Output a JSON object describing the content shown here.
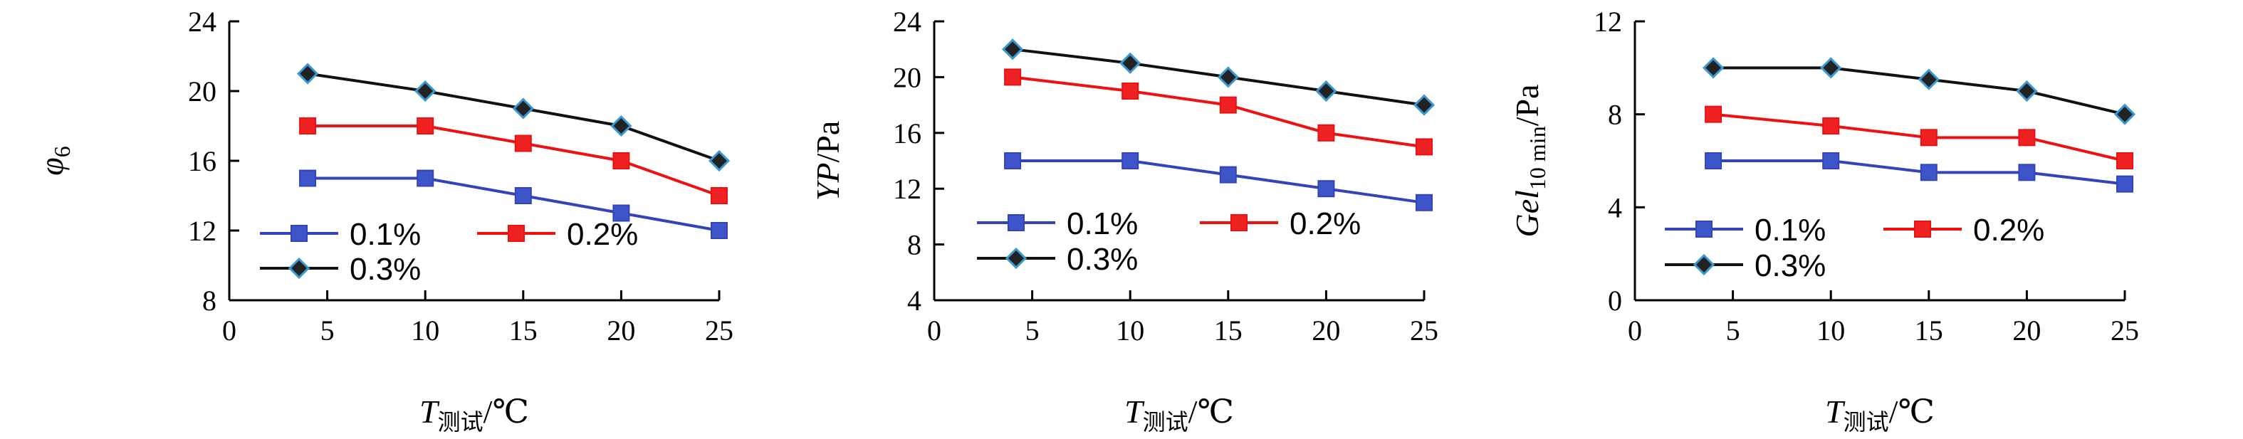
{
  "xlabel": {
    "main": "T",
    "sub": "测试",
    "unit": "/℃"
  },
  "chart_data": [
    {
      "type": "line",
      "ylabel": {
        "main": "φ",
        "sub": "6",
        "unit": ""
      },
      "xlim": [
        0,
        25
      ],
      "xticks": [
        0,
        5,
        10,
        15,
        20,
        25
      ],
      "ylim": [
        8,
        24
      ],
      "yticks": [
        8,
        12,
        16,
        20,
        24
      ],
      "x": [
        4,
        10,
        15,
        20,
        25
      ],
      "series": [
        {
          "name": "0.1%",
          "values": [
            15,
            15,
            14,
            13,
            12
          ]
        },
        {
          "name": "0.2%",
          "values": [
            18,
            18,
            17,
            16,
            14
          ]
        },
        {
          "name": "0.3%",
          "values": [
            21,
            20,
            19,
            18,
            16
          ]
        }
      ]
    },
    {
      "type": "line",
      "ylabel": {
        "main": "YP",
        "sub": "",
        "unit": "/Pa"
      },
      "xlim": [
        0,
        25
      ],
      "xticks": [
        0,
        5,
        10,
        15,
        20,
        25
      ],
      "ylim": [
        4,
        24
      ],
      "yticks": [
        4,
        8,
        12,
        16,
        20,
        24
      ],
      "x": [
        4,
        10,
        15,
        20,
        25
      ],
      "series": [
        {
          "name": "0.1%",
          "values": [
            14,
            14,
            13,
            12,
            11
          ]
        },
        {
          "name": "0.2%",
          "values": [
            20,
            19,
            18,
            16,
            15
          ]
        },
        {
          "name": "0.3%",
          "values": [
            22,
            21,
            20,
            19,
            18
          ]
        }
      ]
    },
    {
      "type": "line",
      "ylabel": {
        "main": "Gel",
        "sub": "10 min",
        "unit": "/Pa"
      },
      "xlim": [
        0,
        25
      ],
      "xticks": [
        0,
        5,
        10,
        15,
        20,
        25
      ],
      "ylim": [
        0,
        12
      ],
      "yticks": [
        0,
        4,
        8,
        12
      ],
      "x": [
        4,
        10,
        15,
        20,
        25
      ],
      "series": [
        {
          "name": "0.1%",
          "values": [
            6,
            6,
            5.5,
            5.5,
            5
          ]
        },
        {
          "name": "0.2%",
          "values": [
            8,
            7.5,
            7,
            7,
            6
          ]
        },
        {
          "name": "0.3%",
          "values": [
            10,
            10,
            9.5,
            9,
            8
          ]
        }
      ]
    }
  ],
  "colors": {
    "series_lines": [
      "#3344bb",
      "#ee1111",
      "#111111"
    ],
    "series_markers": [
      "#3d55c8",
      "#ee2222",
      "#222222"
    ],
    "marker_outline_0.3": "#3a9ad0"
  }
}
